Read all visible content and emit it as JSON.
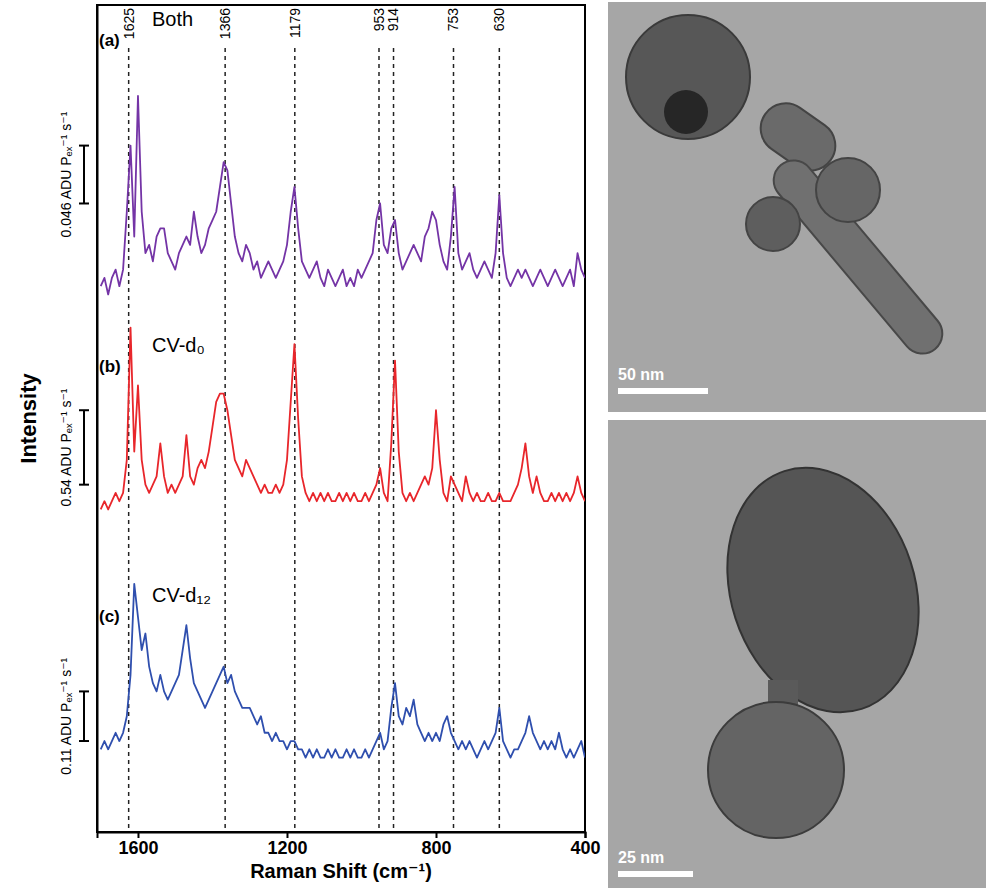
{
  "chart_data": {
    "type": "line",
    "x_label": "Raman Shift (cm⁻¹)",
    "y_label": "Intensity",
    "xlim": [
      1710,
      400
    ],
    "xticks": [
      1600,
      1200,
      800,
      400
    ],
    "ylim": [
      0,
      100
    ],
    "yticks": [],
    "tick_labels": "x",
    "reference_lines": [
      1625,
      1366,
      1179,
      953,
      914,
      753,
      630
    ],
    "x": [
      1700,
      1690,
      1680,
      1670,
      1660,
      1650,
      1640,
      1630,
      1620,
      1610,
      1600,
      1590,
      1580,
      1570,
      1560,
      1550,
      1540,
      1530,
      1520,
      1510,
      1500,
      1490,
      1480,
      1470,
      1460,
      1450,
      1440,
      1430,
      1420,
      1410,
      1400,
      1390,
      1380,
      1370,
      1360,
      1350,
      1340,
      1330,
      1320,
      1310,
      1300,
      1290,
      1280,
      1270,
      1260,
      1250,
      1240,
      1230,
      1220,
      1210,
      1200,
      1190,
      1180,
      1170,
      1160,
      1150,
      1140,
      1130,
      1120,
      1110,
      1100,
      1090,
      1080,
      1070,
      1060,
      1050,
      1040,
      1030,
      1020,
      1010,
      1000,
      990,
      980,
      970,
      960,
      950,
      940,
      930,
      920,
      910,
      900,
      890,
      880,
      870,
      860,
      850,
      840,
      830,
      820,
      810,
      800,
      790,
      780,
      770,
      760,
      750,
      740,
      730,
      720,
      710,
      700,
      690,
      680,
      670,
      660,
      650,
      640,
      630,
      620,
      610,
      600,
      590,
      580,
      570,
      560,
      550,
      540,
      530,
      520,
      510,
      500,
      490,
      480,
      470,
      460,
      450,
      440,
      430,
      420,
      410,
      400
    ],
    "series": [
      {
        "name": "Both",
        "panel": "(a)",
        "color": "#7434a6",
        "scale_bar": {
          "from": 76,
          "to": 83,
          "label": "0.046 ADU Pₑₓ⁻¹ s⁻¹"
        },
        "values": [
          66,
          67,
          65,
          67,
          68,
          66,
          68,
          75,
          83,
          72,
          89,
          75,
          70,
          71,
          69,
          72,
          73,
          73,
          70,
          69,
          68,
          70,
          71,
          72,
          71,
          75,
          72,
          70,
          71,
          73,
          74,
          75,
          78,
          81,
          80,
          76,
          72,
          70,
          69,
          71,
          70,
          68,
          69,
          67,
          68,
          69,
          68,
          67,
          68,
          69,
          71,
          75,
          78,
          73,
          69,
          68,
          67,
          68,
          69,
          67,
          66,
          68,
          67,
          66,
          67,
          68,
          66,
          67,
          66,
          68,
          67,
          68,
          69,
          70,
          74,
          76,
          71,
          70,
          73,
          74,
          70,
          68,
          69,
          70,
          71,
          70,
          69,
          72,
          73,
          75,
          74,
          71,
          69,
          68,
          72,
          78,
          70,
          68,
          69,
          70,
          68,
          67,
          68,
          69,
          68,
          67,
          70,
          77,
          70,
          67,
          66,
          67,
          68,
          67,
          68,
          67,
          66,
          67,
          68,
          67,
          66,
          67,
          68,
          67,
          66,
          67,
          68,
          66,
          70,
          68,
          67
        ]
      },
      {
        "name": "CV-d₀",
        "panel": "(b)",
        "color": "#e8262b",
        "scale_bar": {
          "from": 42,
          "to": 51,
          "label": "0.54 ADU Pₑₓ⁻¹ s⁻¹"
        },
        "values": [
          39,
          40,
          39,
          40,
          41,
          40,
          41,
          45,
          61,
          46,
          54,
          45,
          42,
          41,
          42,
          43,
          47,
          43,
          41,
          42,
          41,
          42,
          43,
          48,
          43,
          42,
          44,
          45,
          44,
          46,
          49,
          52,
          53,
          53,
          51,
          48,
          45,
          44,
          43,
          45,
          44,
          43,
          42,
          41,
          42,
          41,
          41,
          42,
          41,
          42,
          45,
          52,
          59,
          50,
          43,
          41,
          40,
          41,
          40,
          41,
          40,
          41,
          40,
          40,
          41,
          40,
          41,
          40,
          41,
          40,
          40,
          41,
          40,
          41,
          42,
          44,
          41,
          40,
          47,
          57,
          46,
          41,
          40,
          41,
          40,
          41,
          42,
          43,
          42,
          44,
          51,
          45,
          41,
          40,
          43,
          42,
          41,
          40,
          43,
          41,
          40,
          41,
          40,
          40,
          41,
          40,
          40,
          41,
          40,
          40,
          40,
          41,
          42,
          44,
          47,
          43,
          41,
          43,
          41,
          40,
          40,
          41,
          40,
          41,
          40,
          41,
          40,
          41,
          43,
          41,
          40
        ]
      },
      {
        "name": "CV-d₁₂",
        "panel": "(c)",
        "color": "#2f4fae",
        "scale_bar": {
          "from": 11,
          "to": 17,
          "label": "0.11 ADU Pₑₓ⁻¹ s⁻¹"
        },
        "values": [
          10,
          11,
          10,
          11,
          12,
          11,
          12,
          14,
          19,
          30,
          26,
          22,
          24,
          20,
          18,
          17,
          19,
          17,
          16,
          17,
          18,
          19,
          22,
          25,
          21,
          18,
          17,
          16,
          15,
          16,
          17,
          18,
          19,
          20,
          18,
          19,
          17,
          16,
          15,
          15,
          15,
          14,
          13,
          14,
          12,
          12,
          11,
          12,
          11,
          11,
          10,
          11,
          11,
          10,
          10,
          9,
          10,
          9,
          10,
          9,
          9,
          10,
          9,
          10,
          9,
          9,
          10,
          9,
          10,
          9,
          9,
          10,
          9,
          10,
          11,
          12,
          10,
          11,
          15,
          18,
          14,
          13,
          15,
          14,
          16,
          13,
          12,
          11,
          12,
          11,
          12,
          11,
          13,
          14,
          12,
          11,
          10,
          11,
          10,
          11,
          10,
          9,
          10,
          11,
          10,
          11,
          12,
          15,
          11,
          10,
          9,
          10,
          10,
          11,
          12,
          14,
          12,
          11,
          10,
          11,
          10,
          11,
          10,
          12,
          10,
          9,
          10,
          9,
          10,
          11,
          9
        ]
      }
    ]
  },
  "images": [
    {
      "scale_bar": "50 nm"
    },
    {
      "scale_bar": "25 nm"
    }
  ]
}
